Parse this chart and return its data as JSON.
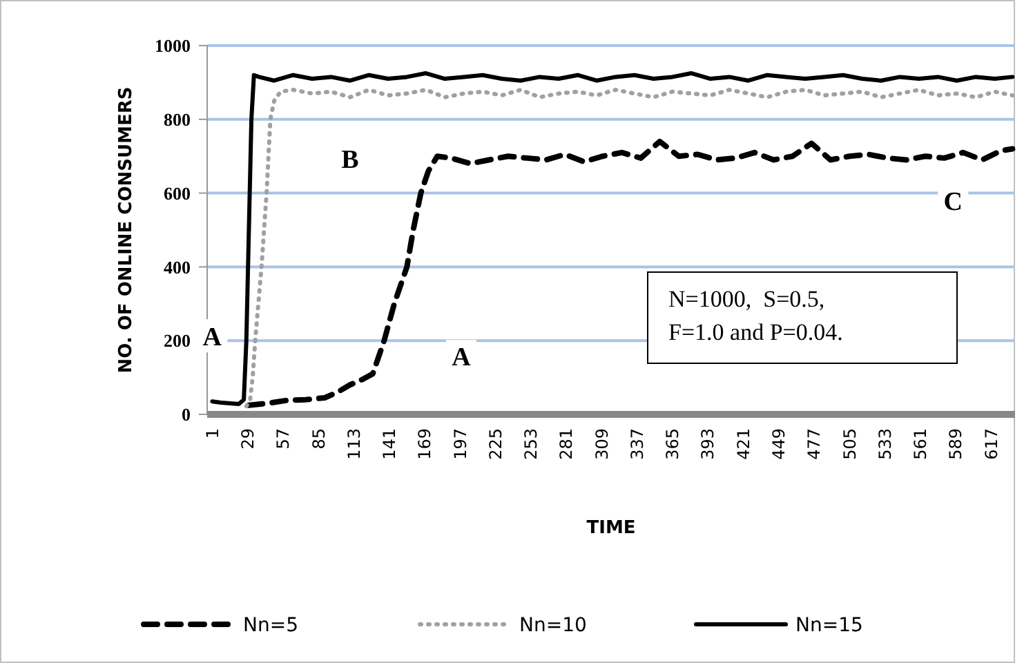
{
  "chart_data": {
    "type": "line",
    "xlabel": "TIME",
    "ylabel": "NO. OF ONLINE CONSUMERS",
    "xlim": [
      -3,
      636
    ],
    "xticks": [
      1,
      29,
      57,
      85,
      113,
      141,
      169,
      197,
      225,
      253,
      281,
      309,
      337,
      365,
      393,
      421,
      449,
      477,
      505,
      533,
      561,
      589,
      617
    ],
    "ylim": [
      0,
      1000
    ],
    "yticks": [
      0,
      200,
      400,
      600,
      800,
      1000
    ],
    "grid": "y",
    "legend": "bottom",
    "marker": "none",
    "series": [
      {
        "name": "Nn=5",
        "color": "#000000",
        "line_style": "dashed",
        "x": [
          30,
          45,
          60,
          75,
          90,
          100,
          110,
          120,
          128,
          137,
          145,
          155,
          160,
          166,
          172,
          179,
          190,
          205,
          220,
          235,
          250,
          265,
          280,
          295,
          310,
          325,
          340,
          355,
          370,
          385,
          400,
          415,
          430,
          445,
          460,
          475,
          490,
          505,
          520,
          535,
          550,
          565,
          580,
          595,
          610,
          625,
          634
        ],
        "values": [
          25,
          30,
          38,
          40,
          45,
          60,
          80,
          95,
          110,
          200,
          300,
          400,
          500,
          600,
          660,
          700,
          695,
          680,
          690,
          700,
          695,
          690,
          705,
          685,
          700,
          710,
          695,
          740,
          700,
          705,
          690,
          695,
          710,
          690,
          700,
          735,
          690,
          700,
          705,
          695,
          690,
          700,
          695,
          710,
          690,
          715,
          720
        ]
      },
      {
        "name": "Nn=10",
        "color": "#a0a0a0",
        "line_style": "dotted",
        "x": [
          28,
          31,
          33,
          35,
          38,
          40,
          42,
          44,
          47,
          50,
          55,
          65,
          80,
          95,
          110,
          125,
          140,
          155,
          170,
          185,
          200,
          215,
          230,
          245,
          260,
          275,
          290,
          305,
          320,
          335,
          350,
          365,
          380,
          395,
          410,
          425,
          440,
          455,
          470,
          485,
          500,
          515,
          530,
          545,
          560,
          575,
          590,
          605,
          620,
          634
        ],
        "values": [
          22,
          40,
          100,
          200,
          320,
          400,
          500,
          600,
          800,
          850,
          875,
          880,
          870,
          875,
          860,
          880,
          865,
          870,
          880,
          860,
          870,
          875,
          865,
          880,
          860,
          870,
          875,
          865,
          880,
          870,
          860,
          875,
          870,
          865,
          880,
          870,
          860,
          875,
          880,
          865,
          870,
          875,
          860,
          870,
          880,
          865,
          870,
          860,
          875,
          865
        ]
      },
      {
        "name": "Nn=15",
        "color": "#000000",
        "line_style": "solid",
        "x": [
          1,
          8,
          15,
          22,
          26,
          28,
          30,
          32,
          34,
          38,
          50,
          65,
          80,
          95,
          110,
          125,
          140,
          155,
          170,
          185,
          200,
          215,
          230,
          245,
          260,
          275,
          290,
          305,
          320,
          335,
          350,
          365,
          380,
          395,
          410,
          425,
          440,
          455,
          470,
          485,
          500,
          515,
          530,
          545,
          560,
          575,
          590,
          605,
          620,
          634
        ],
        "values": [
          35,
          32,
          30,
          28,
          40,
          200,
          500,
          800,
          920,
          915,
          905,
          920,
          910,
          915,
          905,
          920,
          910,
          915,
          925,
          910,
          915,
          920,
          910,
          905,
          915,
          910,
          920,
          905,
          915,
          920,
          910,
          915,
          925,
          910,
          915,
          905,
          920,
          915,
          910,
          915,
          920,
          910,
          905,
          915,
          910,
          915,
          905,
          915,
          910,
          915
        ]
      }
    ],
    "annotations": [
      {
        "text": "A",
        "x": 1,
        "y": 213
      },
      {
        "text": "B",
        "x": 110,
        "y": 693
      },
      {
        "text": "A",
        "x": 198,
        "y": 157
      },
      {
        "text": "C",
        "x": 587,
        "y": 580
      },
      "N=1000,  S=0.5,\nF=1.0 and P=0.04."
    ]
  }
}
